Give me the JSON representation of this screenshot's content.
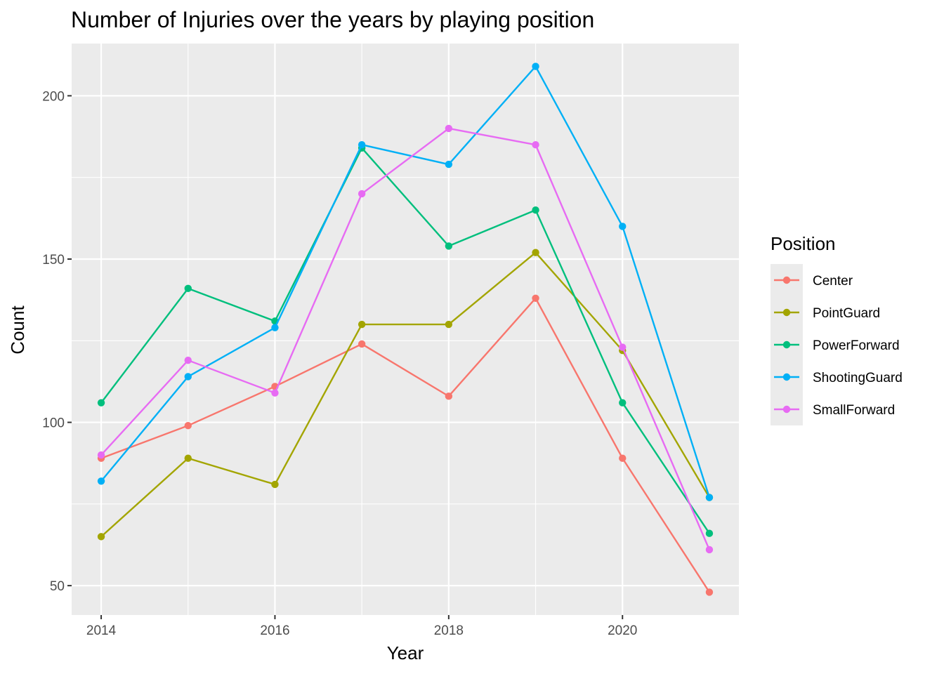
{
  "chart_data": {
    "type": "line",
    "title": "Number of Injuries over the years by playing position",
    "xlabel": "Year",
    "ylabel": "Count",
    "x": [
      2014,
      2015,
      2016,
      2017,
      2018,
      2019,
      2020,
      2021
    ],
    "xlim": [
      2013.66,
      2021.34
    ],
    "ylim": [
      41,
      216
    ],
    "x_ticks": [
      2014,
      2016,
      2018,
      2020
    ],
    "y_ticks": [
      50,
      100,
      150,
      200
    ],
    "grid": true,
    "legend": {
      "title": "Position",
      "placement": "right"
    },
    "series": [
      {
        "name": "Center",
        "color": "#F8766D",
        "values": [
          89,
          99,
          111,
          124,
          108,
          138,
          89,
          48
        ]
      },
      {
        "name": "PointGuard",
        "color": "#A3A500",
        "values": [
          65,
          89,
          81,
          130,
          130,
          152,
          122,
          77
        ]
      },
      {
        "name": "PowerForward",
        "color": "#00BF7D",
        "values": [
          106,
          141,
          131,
          184,
          154,
          165,
          106,
          66
        ]
      },
      {
        "name": "ShootingGuard",
        "color": "#00B0F6",
        "values": [
          82,
          114,
          129,
          185,
          179,
          209,
          160,
          77
        ]
      },
      {
        "name": "SmallForward",
        "color": "#E76BF3",
        "values": [
          90,
          119,
          109,
          170,
          190,
          185,
          123,
          61
        ]
      }
    ]
  },
  "colors": {
    "panel_background": "#EBEBEB",
    "grid_major": "#FFFFFF",
    "tick_text": "#4D4D4D"
  }
}
